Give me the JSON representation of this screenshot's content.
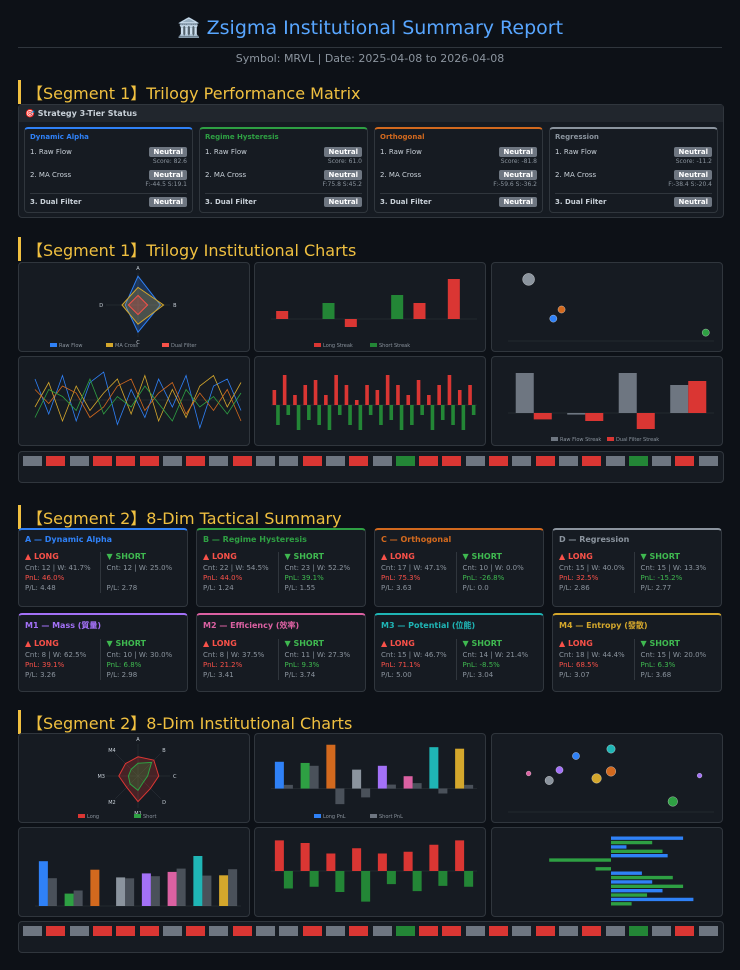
{
  "header": {
    "title": "🏛️ Zsigma Institutional Summary Report",
    "subtitle": "Symbol: MRVL | Date: 2025-04-08 to 2026-04-08"
  },
  "seg1_title": "【Segment 1】Trilogy Performance Matrix",
  "status": {
    "title": "🎯 Strategy 3-Tier Status",
    "cards": [
      {
        "name": "Dynamic Alpha",
        "color": "#2f81f7",
        "rows": [
          {
            "label": "1. Raw Flow",
            "badge": "Neutral",
            "sub": "Score: 82.6"
          },
          {
            "label": "2. MA Cross",
            "badge": "Neutral",
            "sub": "F:-44.5 S:19.1"
          },
          {
            "label": "3. Dual Filter",
            "badge": "Neutral"
          }
        ]
      },
      {
        "name": "Regime Hysteresis",
        "color": "#2ea043",
        "rows": [
          {
            "label": "1. Raw Flow",
            "badge": "Neutral",
            "sub": "Score: 61.0"
          },
          {
            "label": "2. MA Cross",
            "badge": "Neutral",
            "sub": "F:75.8 S:45.2"
          },
          {
            "label": "3. Dual Filter",
            "badge": "Neutral"
          }
        ]
      },
      {
        "name": "Orthogonal",
        "color": "#d2691e",
        "rows": [
          {
            "label": "1. Raw Flow",
            "badge": "Neutral",
            "sub": "Score: -81.8"
          },
          {
            "label": "2. MA Cross",
            "badge": "Neutral",
            "sub": "F:-59.6 S:-36.2"
          },
          {
            "label": "3. Dual Filter",
            "badge": "Neutral"
          }
        ]
      },
      {
        "name": "Regression",
        "color": "#8b949e",
        "rows": [
          {
            "label": "1. Raw Flow",
            "badge": "Neutral",
            "sub": "Score: -11.2"
          },
          {
            "label": "2. MA Cross",
            "badge": "Neutral",
            "sub": "F:-38.4 S:-20.4"
          },
          {
            "label": "3. Dual Filter",
            "badge": "Neutral"
          }
        ]
      }
    ]
  },
  "seg1_charts_title": "【Segment 1】Trilogy Institutional Charts",
  "seg1_charts": [
    {
      "type": "radar",
      "categories": [
        "A",
        "B",
        "C",
        "D"
      ],
      "ylim": [
        0,
        100
      ],
      "series": [
        {
          "name": "Raw Flow",
          "color": "#2f81f7",
          "values": [
            90,
            70,
            85,
            40
          ]
        },
        {
          "name": "MA Cross",
          "color": "#d4a72c",
          "values": [
            55,
            80,
            60,
            50
          ]
        },
        {
          "name": "Dual Filter",
          "color": "#f85149",
          "values": [
            30,
            30,
            30,
            30
          ]
        }
      ]
    },
    {
      "type": "bar",
      "ylim": [
        -2,
        6
      ],
      "series": [
        {
          "name": "Long Streak",
          "color": "#da3633",
          "values": [
            1,
            0,
            -1,
            0,
            2,
            5
          ]
        },
        {
          "name": "Short Streak",
          "color": "#238636",
          "values": [
            0,
            2,
            0,
            3,
            0,
            0
          ]
        }
      ]
    },
    {
      "type": "scatter",
      "xlim": [
        0,
        5
      ],
      "ylim": [
        0,
        100
      ],
      "series": [
        {
          "color": "#8b949e",
          "x": [
            0.5
          ],
          "values": [
            88
          ],
          "sizes": [
            10
          ]
        },
        {
          "color": "#d2691e",
          "x": [
            1.3
          ],
          "values": [
            45
          ],
          "sizes": [
            6
          ]
        },
        {
          "color": "#2f81f7",
          "x": [
            1.1
          ],
          "values": [
            32
          ],
          "sizes": [
            6
          ]
        },
        {
          "color": "#2ea043",
          "x": [
            4.8
          ],
          "values": [
            12
          ],
          "sizes": [
            6
          ]
        }
      ]
    },
    {
      "type": "line",
      "ylim": [
        -100,
        100
      ],
      "series": [
        {
          "color": "#2f81f7",
          "values": [
            60,
            -40,
            70,
            -60,
            50,
            80,
            -70,
            30,
            -50,
            60,
            -20,
            70,
            -80,
            40,
            60,
            -30
          ]
        },
        {
          "color": "#d4a72c",
          "values": [
            -20,
            50,
            -60,
            40,
            -30,
            20,
            60,
            -40,
            70,
            -60,
            30,
            -50,
            40,
            70,
            -20,
            50
          ]
        },
        {
          "color": "#d2691e",
          "values": [
            30,
            -10,
            40,
            20,
            -50,
            -20,
            40,
            60,
            -30,
            20,
            50,
            -40,
            20,
            -30,
            30,
            -60
          ]
        },
        {
          "color": "#2ea043",
          "values": [
            -50,
            30,
            10,
            -30,
            60,
            -40,
            10,
            -20,
            40,
            -10,
            -60,
            30,
            -20,
            10,
            -40,
            20
          ]
        }
      ]
    },
    {
      "type": "bar",
      "ylim": [
        -3,
        4
      ],
      "series": [
        {
          "color": "#da3633",
          "values": [
            1.5,
            3,
            1,
            2,
            2.5,
            1,
            3,
            2,
            0.5,
            2,
            1.5,
            3,
            2,
            1,
            2.5,
            1,
            2,
            3,
            1.5,
            2
          ]
        },
        {
          "color": "#238636",
          "values": [
            -2,
            -1,
            -2.5,
            -1.5,
            -2,
            -2.5,
            -1,
            -2,
            -2.5,
            -1,
            -2,
            -1.5,
            -2.5,
            -2,
            -1,
            -2.5,
            -1.5,
            -2,
            -2.5,
            -1
          ]
        }
      ]
    },
    {
      "type": "bar",
      "ylim": [
        -2,
        6
      ],
      "series": [
        {
          "name": "Raw Flow Streak",
          "color": "#6e7681",
          "values": [
            5,
            -0.2,
            5,
            3.5
          ]
        },
        {
          "name": "Dual Filter Streak",
          "color": "#da3633",
          "values": [
            -0.8,
            -1,
            -2,
            4
          ]
        }
      ]
    }
  ],
  "seg2_title": "【Segment 2】8-Dim Tactical Summary",
  "tactical": [
    {
      "title": "A — Dynamic Alpha",
      "color": "#2f81f7",
      "long": {
        "label": "▲ LONG",
        "lines": [
          "Cnt: 12 | W: 41.7%",
          "PnL: 46.0%",
          "P/L: 4.48"
        ]
      },
      "short": {
        "label": "▼ SHORT",
        "lines": [
          "Cnt: 12 | W: 25.0%",
          "P/L: 2.78"
        ]
      }
    },
    {
      "title": "B — Regime Hysteresis",
      "color": "#2ea043",
      "long": {
        "label": "▲ LONG",
        "lines": [
          "Cnt: 22 | W: 54.5%",
          "PnL: 44.0%",
          "P/L: 1.24"
        ]
      },
      "short": {
        "label": "▼ SHORT",
        "lines": [
          "Cnt: 23 | W: 52.2%",
          "PnL: 39.1%",
          "P/L: 1.55"
        ]
      }
    },
    {
      "title": "C — Orthogonal",
      "color": "#d2691e",
      "long": {
        "label": "▲ LONG",
        "lines": [
          "Cnt: 17 | W: 47.1%",
          "PnL: 75.3%",
          "P/L: 3.63"
        ]
      },
      "short": {
        "label": "▼ SHORT",
        "lines": [
          "Cnt: 10 | W: 0.0%",
          "PnL: -26.8%",
          "P/L: 0.0"
        ]
      }
    },
    {
      "title": "D — Regression",
      "color": "#8b949e",
      "long": {
        "label": "▲ LONG",
        "lines": [
          "Cnt: 15 | W: 40.0%",
          "PnL: 32.5%",
          "P/L: 2.86"
        ]
      },
      "short": {
        "label": "▼ SHORT",
        "lines": [
          "Cnt: 15 | W: 13.3%",
          "PnL: -15.2%",
          "P/L: 2.77"
        ]
      }
    },
    {
      "title": "M1 — Mass (質量)",
      "color": "#a371f7",
      "long": {
        "label": "▲ LONG",
        "lines": [
          "Cnt: 8 | W: 62.5%",
          "PnL: 39.1%",
          "P/L: 3.26"
        ]
      },
      "short": {
        "label": "▼ SHORT",
        "lines": [
          "Cnt: 10 | W: 30.0%",
          "PnL: 6.8%",
          "P/L: 2.98"
        ]
      }
    },
    {
      "title": "M2 — Efficiency (效率)",
      "color": "#db61a2",
      "long": {
        "label": "▲ LONG",
        "lines": [
          "Cnt: 8 | W: 37.5%",
          "PnL: 21.2%",
          "P/L: 3.41"
        ]
      },
      "short": {
        "label": "▼ SHORT",
        "lines": [
          "Cnt: 11 | W: 27.3%",
          "PnL: 9.3%",
          "P/L: 3.74"
        ]
      }
    },
    {
      "title": "M3 — Potential (位能)",
      "color": "#1fb5b5",
      "long": {
        "label": "▲ LONG",
        "lines": [
          "Cnt: 15 | W: 46.7%",
          "PnL: 71.1%",
          "P/L: 5.00"
        ]
      },
      "short": {
        "label": "▼ SHORT",
        "lines": [
          "Cnt: 14 | W: 21.4%",
          "PnL: -8.5%",
          "P/L: 3.04"
        ]
      }
    },
    {
      "title": "M4 — Entropy (發散)",
      "color": "#d4a72c",
      "long": {
        "label": "▲ LONG",
        "lines": [
          "Cnt: 18 | W: 44.4%",
          "PnL: 68.5%",
          "P/L: 3.07"
        ]
      },
      "short": {
        "label": "▼ SHORT",
        "lines": [
          "Cnt: 15 | W: 20.0%",
          "PnL: 6.3%",
          "P/L: 3.68"
        ]
      }
    }
  ],
  "seg2_charts_title": "【Segment 2】8-Dim Institutional Charts",
  "seg2_charts": [
    {
      "type": "radar",
      "categories": [
        "A",
        "B",
        "C",
        "D",
        "M1",
        "M2",
        "M3",
        "M4"
      ],
      "ylim": [
        0,
        100
      ],
      "series": [
        {
          "name": "Long",
          "color": "#da3633",
          "values": [
            60,
            70,
            65,
            55,
            80,
            50,
            60,
            55
          ]
        },
        {
          "name": "Short",
          "color": "#2ea043",
          "values": [
            40,
            60,
            30,
            25,
            45,
            35,
            30,
            30
          ]
        }
      ]
    },
    {
      "type": "bar",
      "ylim": [
        -30,
        80
      ],
      "colors": [
        "#2f81f7",
        "#2ea043",
        "#d2691e",
        "#8b949e",
        "#a371f7",
        "#db61a2",
        "#1fb5b5",
        "#d4a72c"
      ],
      "series": [
        {
          "name": "Long PnL",
          "color": "#2f81f7",
          "values": [
            46,
            44,
            75.3,
            32.5,
            39.1,
            21.2,
            71.1,
            68.5
          ]
        },
        {
          "name": "Short PnL",
          "color": "#6e7681",
          "values": [
            6.3,
            39.1,
            -26.8,
            -15.2,
            6.8,
            9.3,
            -8.5,
            6.3
          ]
        }
      ]
    },
    {
      "type": "scatter",
      "xlim": [
        0,
        10
      ],
      "ylim": [
        0,
        100
      ],
      "series": [
        {
          "color": "#db61a2",
          "x": [
            1
          ],
          "values": [
            55
          ],
          "sizes": [
            4
          ]
        },
        {
          "color": "#8b949e",
          "x": [
            2
          ],
          "values": [
            45
          ],
          "sizes": [
            7
          ]
        },
        {
          "color": "#a371f7",
          "x": [
            2.5
          ],
          "values": [
            60
          ],
          "sizes": [
            6
          ]
        },
        {
          "color": "#2f81f7",
          "x": [
            3.3
          ],
          "values": [
            80
          ],
          "sizes": [
            6
          ]
        },
        {
          "color": "#d4a72c",
          "x": [
            4.3
          ],
          "values": [
            48
          ],
          "sizes": [
            8
          ]
        },
        {
          "color": "#d2691e",
          "x": [
            5
          ],
          "values": [
            58
          ],
          "sizes": [
            8
          ]
        },
        {
          "color": "#1fb5b5",
          "x": [
            5
          ],
          "values": [
            90
          ],
          "sizes": [
            7
          ]
        },
        {
          "color": "#2ea043",
          "x": [
            8
          ],
          "values": [
            15
          ],
          "sizes": [
            8
          ]
        },
        {
          "color": "#a371f7",
          "x": [
            9.3
          ],
          "values": [
            52
          ],
          "sizes": [
            4
          ]
        }
      ]
    },
    {
      "type": "bar",
      "ylim": [
        0,
        7
      ],
      "colors": [
        "#2f81f7",
        "#2ea043",
        "#d2691e",
        "#8b949e",
        "#a371f7",
        "#db61a2",
        "#1fb5b5",
        "#d4a72c"
      ],
      "series": [
        {
          "color": "#2f81f7",
          "values": [
            4.48,
            1.24,
            3.63,
            2.86,
            3.26,
            3.41,
            5.0,
            3.07
          ]
        },
        {
          "color": "#6e7681",
          "values": [
            2.78,
            1.55,
            0,
            2.77,
            2.98,
            3.74,
            3.04,
            3.68
          ]
        }
      ]
    },
    {
      "type": "bar",
      "ylim": [
        -4,
        4
      ],
      "series": [
        {
          "color": "#da3633",
          "values": [
            3.5,
            3.2,
            2,
            2.6,
            2,
            2.2,
            3,
            3.5
          ]
        },
        {
          "color": "#238636",
          "values": [
            -2,
            -1.8,
            -2.4,
            -3.5,
            -1.5,
            -2.3,
            -1.7,
            -1.8
          ]
        }
      ]
    },
    {
      "type": "hbar",
      "xlim": [
        -100,
        100
      ],
      "series": [
        {
          "color": "#2f81f7",
          "values": [
            70,
            15,
            55,
            0,
            30,
            40,
            50,
            80
          ]
        },
        {
          "color": "#2ea043",
          "values": [
            40,
            50,
            -60,
            -15,
            60,
            70,
            35,
            20
          ]
        }
      ]
    }
  ]
}
